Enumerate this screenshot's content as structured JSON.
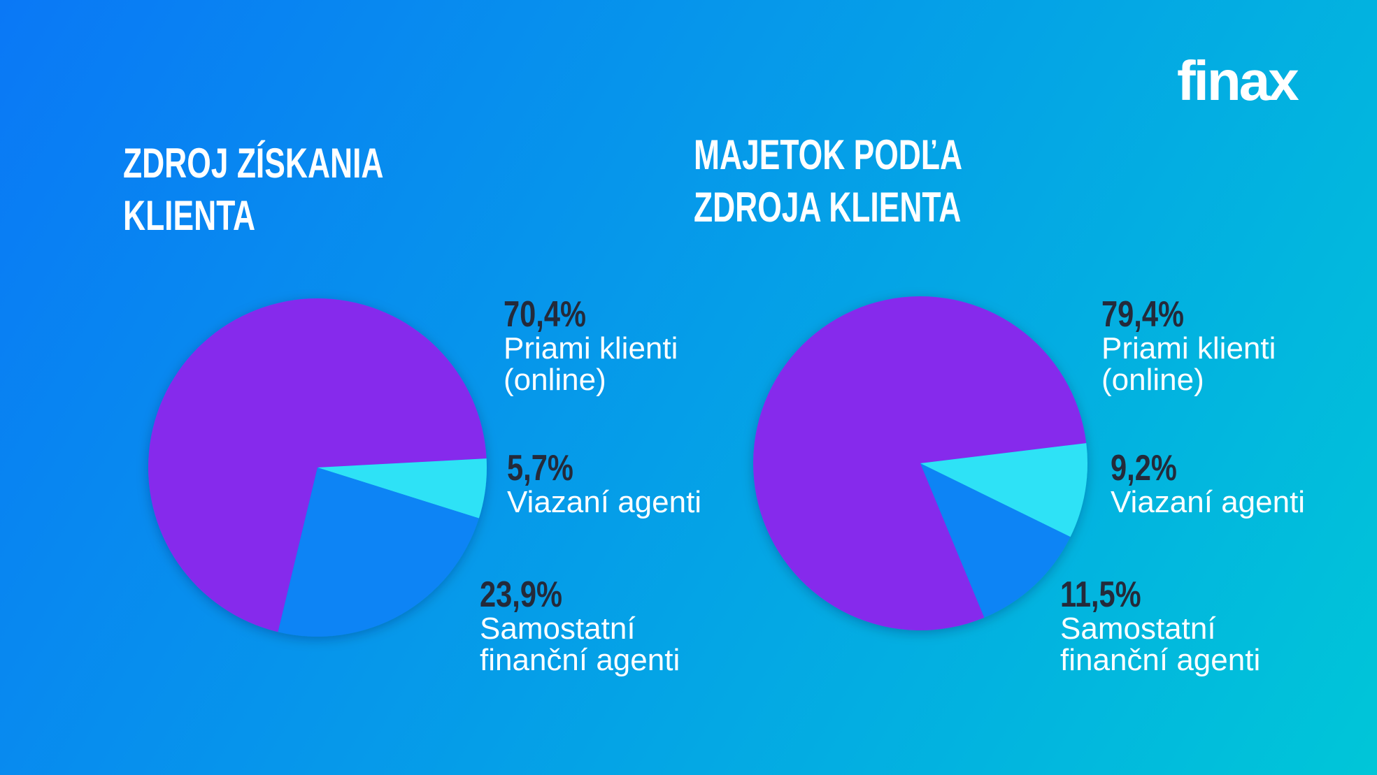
{
  "logo": "finax",
  "chart_data": [
    {
      "type": "pie",
      "title": "ZDROJ ZÍSKANIA KLIENTA",
      "categories": [
        "Priami klienti (online)",
        "Viazaní agenti",
        "Samostatní finanční agenti"
      ],
      "values": [
        70.4,
        5.7,
        23.9
      ],
      "value_labels": [
        "70,4%",
        "5,7%",
        "23,9%"
      ],
      "colors": [
        "#862cec",
        "#2fe2f6",
        "#0a84f5"
      ]
    },
    {
      "type": "pie",
      "title": "MAJETOK PODĽA ZDROJA KLIENTA",
      "categories": [
        "Priami klienti (online)",
        "Viazaní agenti",
        "Samostatní finanční agenti"
      ],
      "values": [
        79.4,
        9.2,
        11.5
      ],
      "value_labels": [
        "79,4%",
        "9,2%",
        "11,5%"
      ],
      "colors": [
        "#862cec",
        "#2fe2f6",
        "#0a84f5"
      ]
    }
  ]
}
